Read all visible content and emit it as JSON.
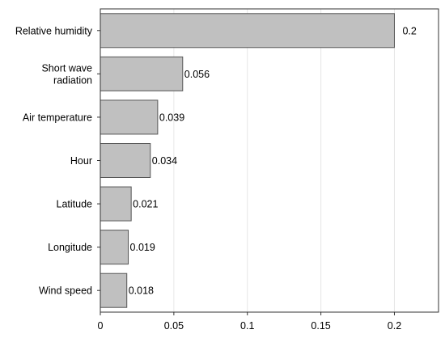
{
  "chart_data": {
    "type": "bar",
    "orientation": "horizontal",
    "categories": [
      [
        "Relative humidity"
      ],
      [
        "Short wave",
        "radiation"
      ],
      [
        "Air temperature"
      ],
      [
        "Hour"
      ],
      [
        "Latitude"
      ],
      [
        "Longitude"
      ],
      [
        "Wind speed"
      ]
    ],
    "values": [
      0.2,
      0.056,
      0.039,
      0.034,
      0.021,
      0.019,
      0.018
    ],
    "value_labels": [
      "0.2",
      "0.056",
      "0.039",
      "0.034",
      "0.021",
      "0.019",
      "0.018"
    ],
    "x_ticks": [
      0,
      0.05,
      0.1,
      0.15,
      0.2
    ],
    "x_tick_labels": [
      "0",
      "0.05",
      "0.1",
      "0.15",
      "0.2"
    ],
    "xlim": [
      0,
      0.23
    ],
    "title": "",
    "xlabel": "",
    "ylabel": "",
    "grid": "vertical",
    "legend": "none",
    "bar_color": "#c0c0c0",
    "bar_edge_color": "#555555",
    "grid_color": "#e6e6e6"
  }
}
